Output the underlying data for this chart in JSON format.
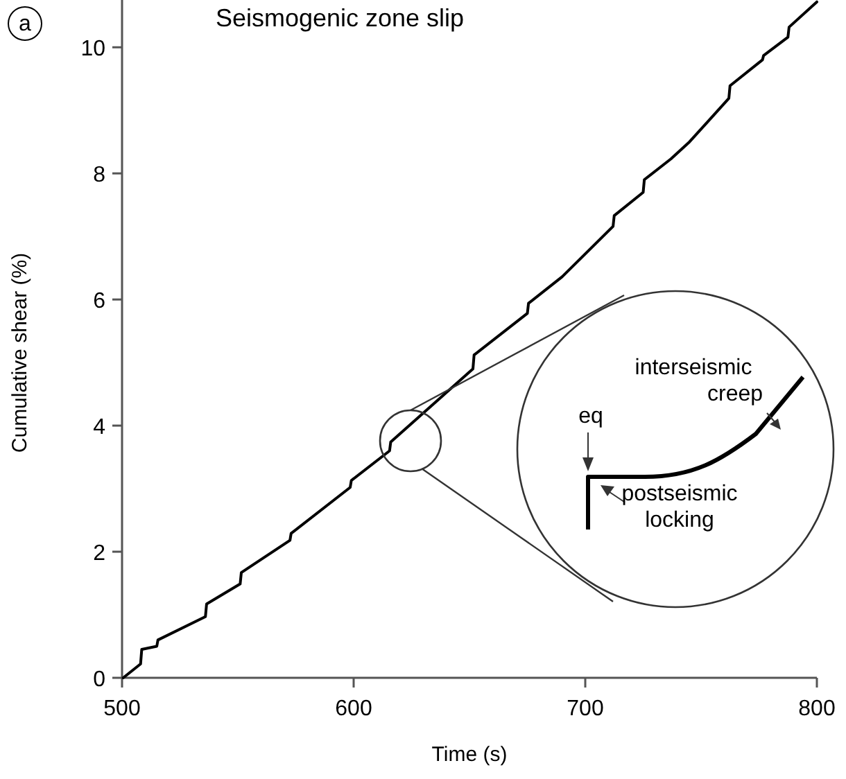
{
  "chart_data": {
    "type": "line",
    "title": "Seismogenic zone slip",
    "xlabel": "Time (s)",
    "ylabel": "Cumulative shear (%)",
    "x": [
      500.5,
      508,
      508.5,
      515,
      515.5,
      536,
      536.5,
      551,
      551.5,
      572.5,
      573,
      598.5,
      599,
      615.5,
      616,
      651.5,
      652,
      675,
      675.5,
      690,
      712,
      712.5,
      725,
      725.5,
      737,
      745,
      762,
      762.5,
      776.5,
      777,
      787.5,
      788,
      800
    ],
    "series": [
      {
        "color": "#000000",
        "values": [
          0,
          0.22,
          0.45,
          0.5,
          0.6,
          0.97,
          1.17,
          1.49,
          1.67,
          2.18,
          2.29,
          3.02,
          3.13,
          3.6,
          3.74,
          4.9,
          5.12,
          5.78,
          5.94,
          6.36,
          7.16,
          7.33,
          7.7,
          7.9,
          8.23,
          8.5,
          9.19,
          9.39,
          9.8,
          9.87,
          10.16,
          10.32,
          10.72
        ]
      }
    ],
    "xlim": [
      500,
      800
    ],
    "xticks": [
      500,
      600,
      700,
      800
    ],
    "ylim": [
      0,
      10.75
    ],
    "yticks": [
      0,
      2,
      4,
      6,
      8,
      10
    ],
    "grid": false,
    "marker": "none",
    "line_style": "solid",
    "annotations": [
      "a",
      "eq",
      "interseismic creep",
      "postseismic locking"
    ]
  }
}
